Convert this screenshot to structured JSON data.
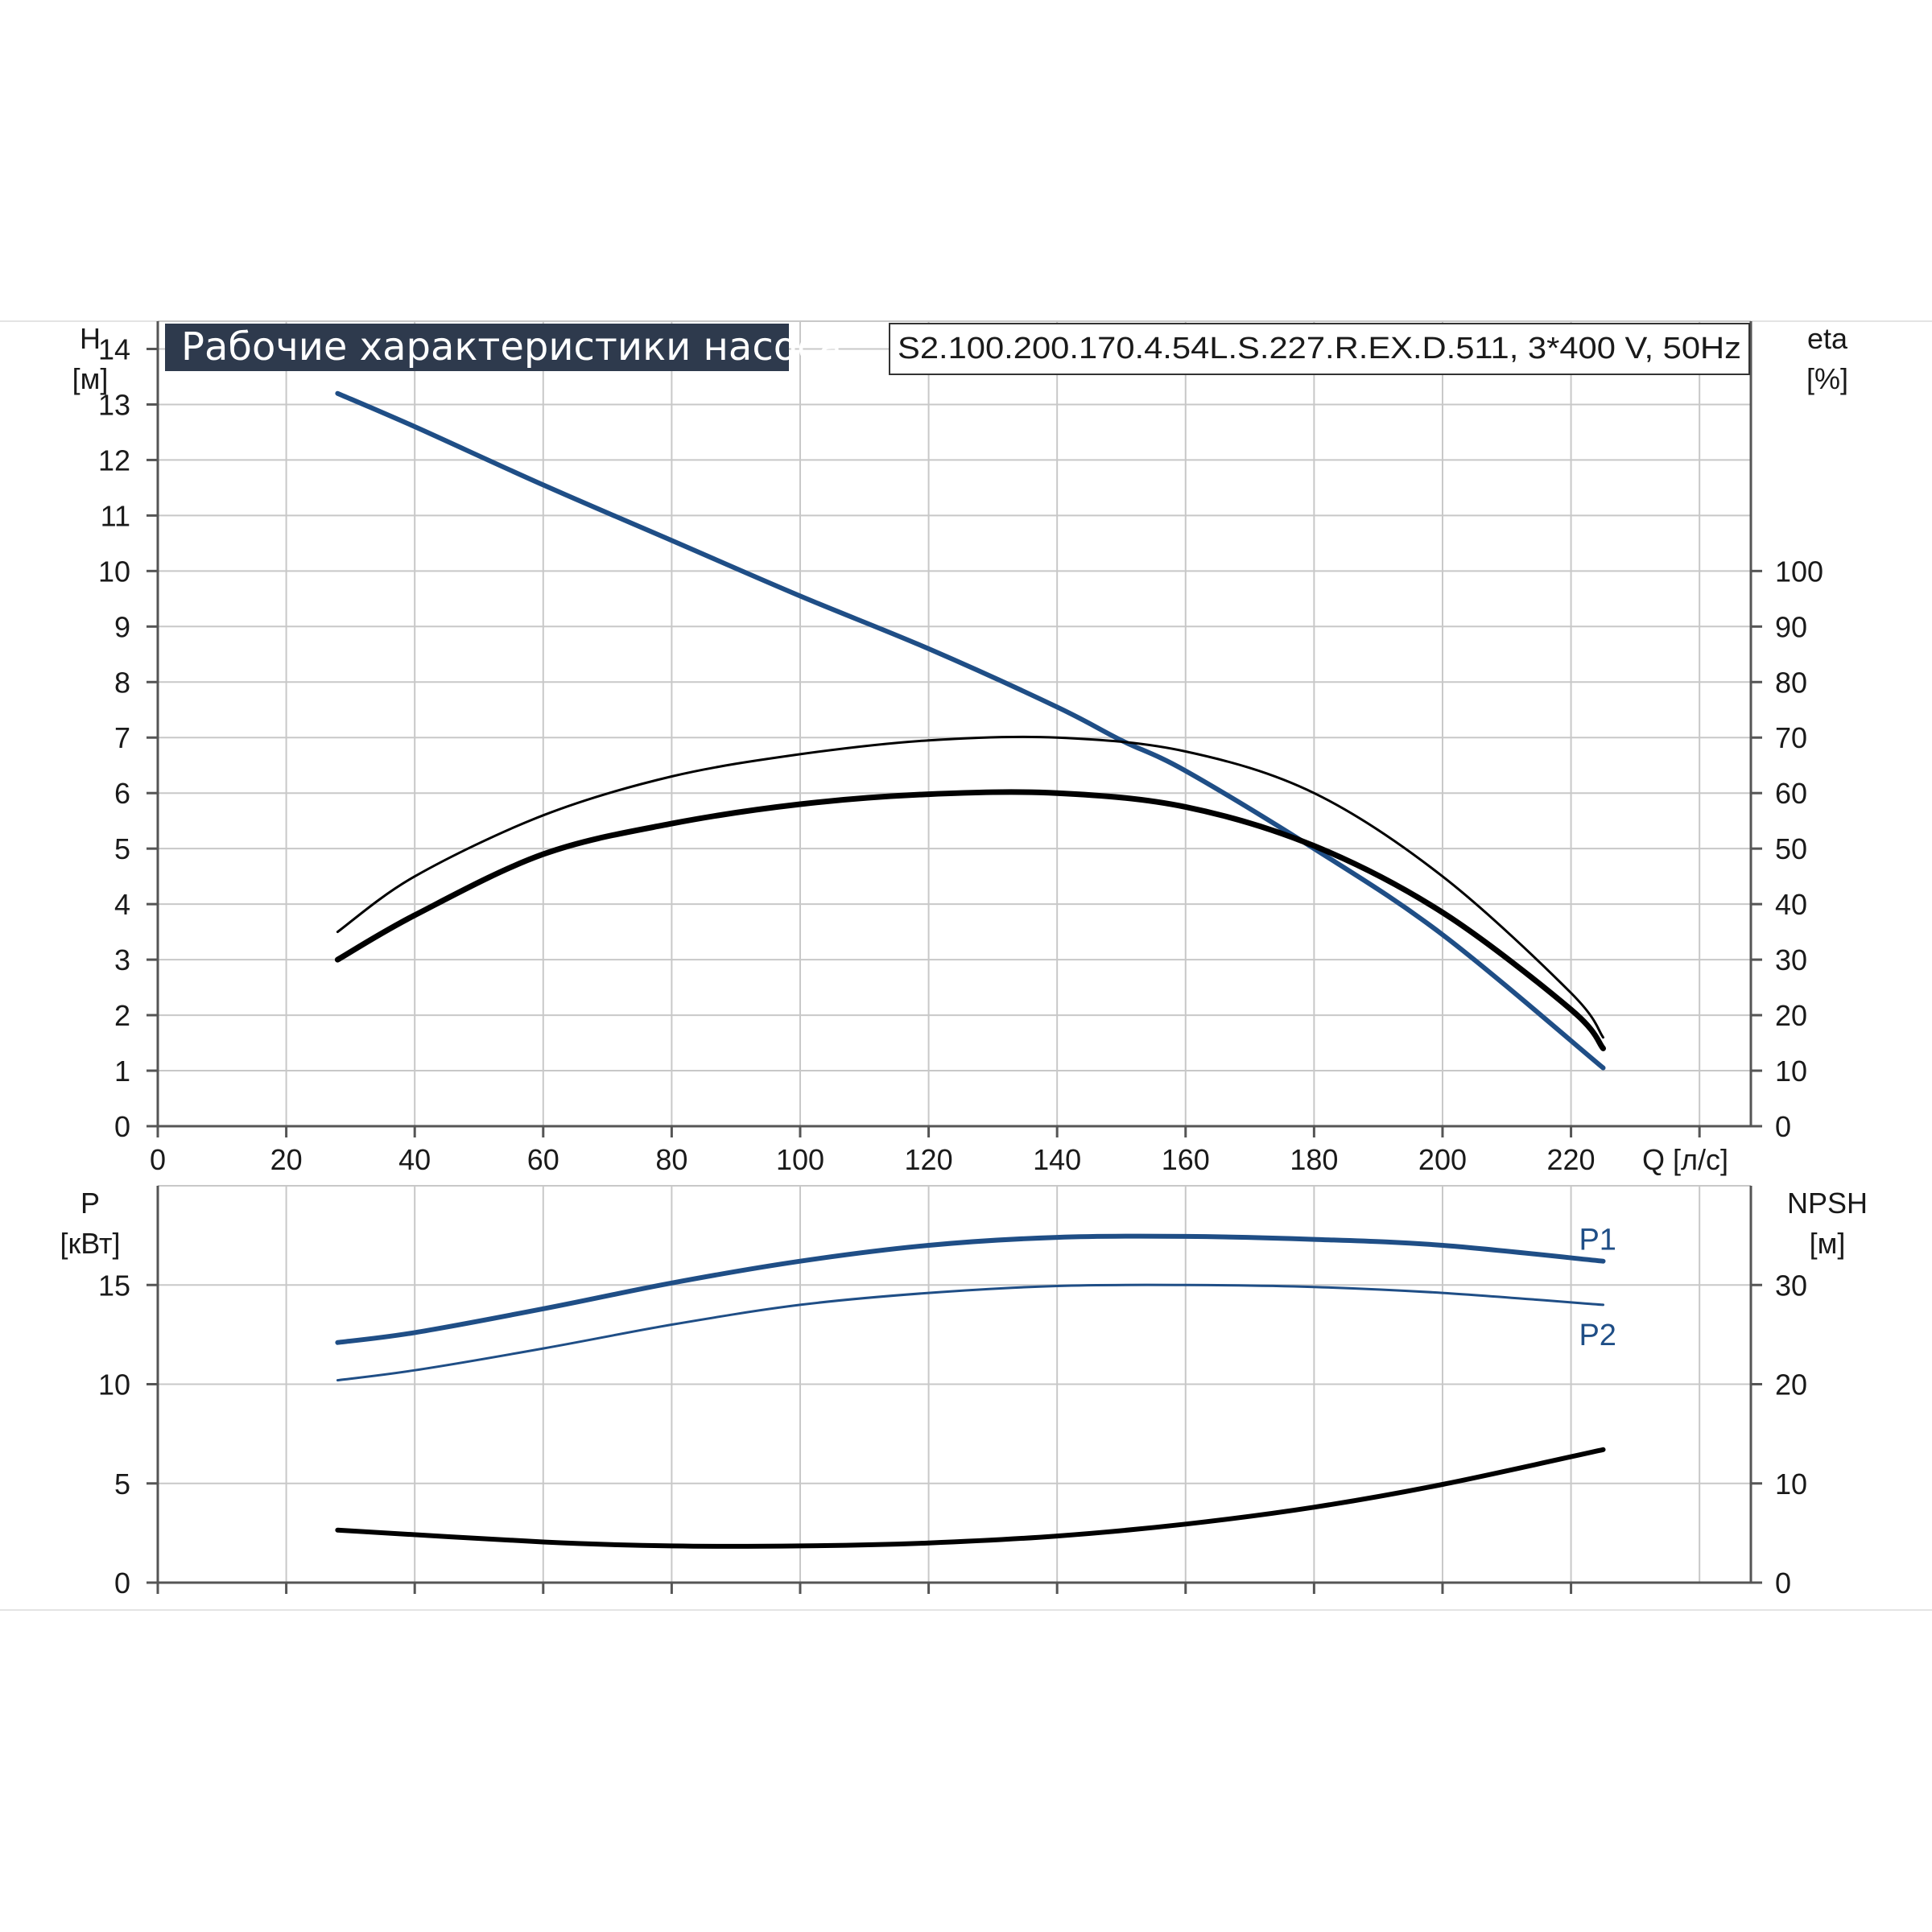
{
  "title": "Рабочие характеристики насоса",
  "model": "S2.100.200.170.4.54L.S.227.R.EX.D.511, 3*400 V, 50Hz",
  "colors": {
    "blue": "#1f4e86",
    "black": "#000000",
    "title_bg": "#2e3a4d"
  },
  "chart_data": [
    {
      "type": "line",
      "name_key": "head-efficiency",
      "xlabel": "Q [л/с]",
      "ylabel_lines": [
        "H",
        "[м]"
      ],
      "y2label_lines": [
        "eta",
        "[%]"
      ],
      "xlim": [
        0,
        248
      ],
      "ylim": [
        0,
        14.5
      ],
      "y2lim": [
        0,
        145
      ],
      "x_ticks": [
        0,
        20,
        40,
        60,
        80,
        100,
        120,
        140,
        160,
        180,
        200,
        220
      ],
      "y_ticks": [
        0,
        1,
        2,
        3,
        4,
        5,
        6,
        7,
        8,
        9,
        10,
        11,
        12,
        13,
        14
      ],
      "y2_ticks": [
        0,
        10,
        20,
        30,
        40,
        50,
        60,
        70,
        80,
        90,
        100
      ],
      "grid": true,
      "series": [
        {
          "color": "#1f4e86",
          "width": 6,
          "axis": "left",
          "x": [
            28,
            40,
            60,
            80,
            100,
            120,
            140,
            150,
            160,
            180,
            200,
            225
          ],
          "y": [
            13.2,
            12.6,
            11.55,
            10.55,
            9.55,
            8.6,
            7.55,
            6.95,
            6.4,
            5.0,
            3.45,
            1.05
          ]
        },
        {
          "color": "#000000",
          "width": 3,
          "axis": "right",
          "x": [
            28,
            40,
            60,
            80,
            100,
            120,
            140,
            160,
            180,
            200,
            220,
            225
          ],
          "y": [
            35,
            45,
            56,
            63,
            67,
            69.5,
            70,
            67.5,
            60,
            45,
            24,
            16
          ]
        },
        {
          "color": "#000000",
          "width": 7,
          "axis": "right",
          "x": [
            28,
            40,
            60,
            80,
            100,
            120,
            140,
            160,
            180,
            200,
            220,
            225
          ],
          "y": [
            30,
            38,
            49,
            54.5,
            58,
            59.8,
            60,
            57.5,
            50.5,
            38.5,
            21,
            14
          ]
        }
      ]
    },
    {
      "type": "line",
      "name_key": "power-npsh",
      "ylabel_lines": [
        "P",
        "[кВт]"
      ],
      "y2label_lines": [
        "NPSH",
        "[м]"
      ],
      "xlim": [
        0,
        248
      ],
      "ylim": [
        0,
        20
      ],
      "y2lim": [
        0,
        40
      ],
      "y_ticks": [
        0,
        5,
        10,
        15
      ],
      "y2_ticks": [
        0,
        10,
        20,
        30
      ],
      "grid": true,
      "series": [
        {
          "name": "P1",
          "color": "#1f4e86",
          "width": 6,
          "axis": "left",
          "x": [
            28,
            40,
            60,
            80,
            100,
            120,
            140,
            160,
            180,
            200,
            225
          ],
          "y": [
            12.1,
            12.6,
            13.8,
            15.1,
            16.2,
            17.0,
            17.4,
            17.45,
            17.3,
            17.0,
            16.2
          ]
        },
        {
          "name": "P2",
          "color": "#1f4e86",
          "width": 3,
          "axis": "left",
          "x": [
            28,
            40,
            60,
            80,
            100,
            120,
            140,
            160,
            180,
            200,
            225
          ],
          "y": [
            10.2,
            10.7,
            11.8,
            13.0,
            14.0,
            14.6,
            14.95,
            15.0,
            14.9,
            14.6,
            14.0
          ]
        },
        {
          "color": "#000000",
          "width": 6,
          "axis": "right",
          "x": [
            28,
            60,
            80,
            100,
            120,
            140,
            160,
            180,
            200,
            225
          ],
          "y": [
            5.3,
            4.1,
            3.7,
            3.7,
            4.0,
            4.7,
            5.9,
            7.6,
            9.9,
            13.4
          ]
        }
      ]
    }
  ]
}
